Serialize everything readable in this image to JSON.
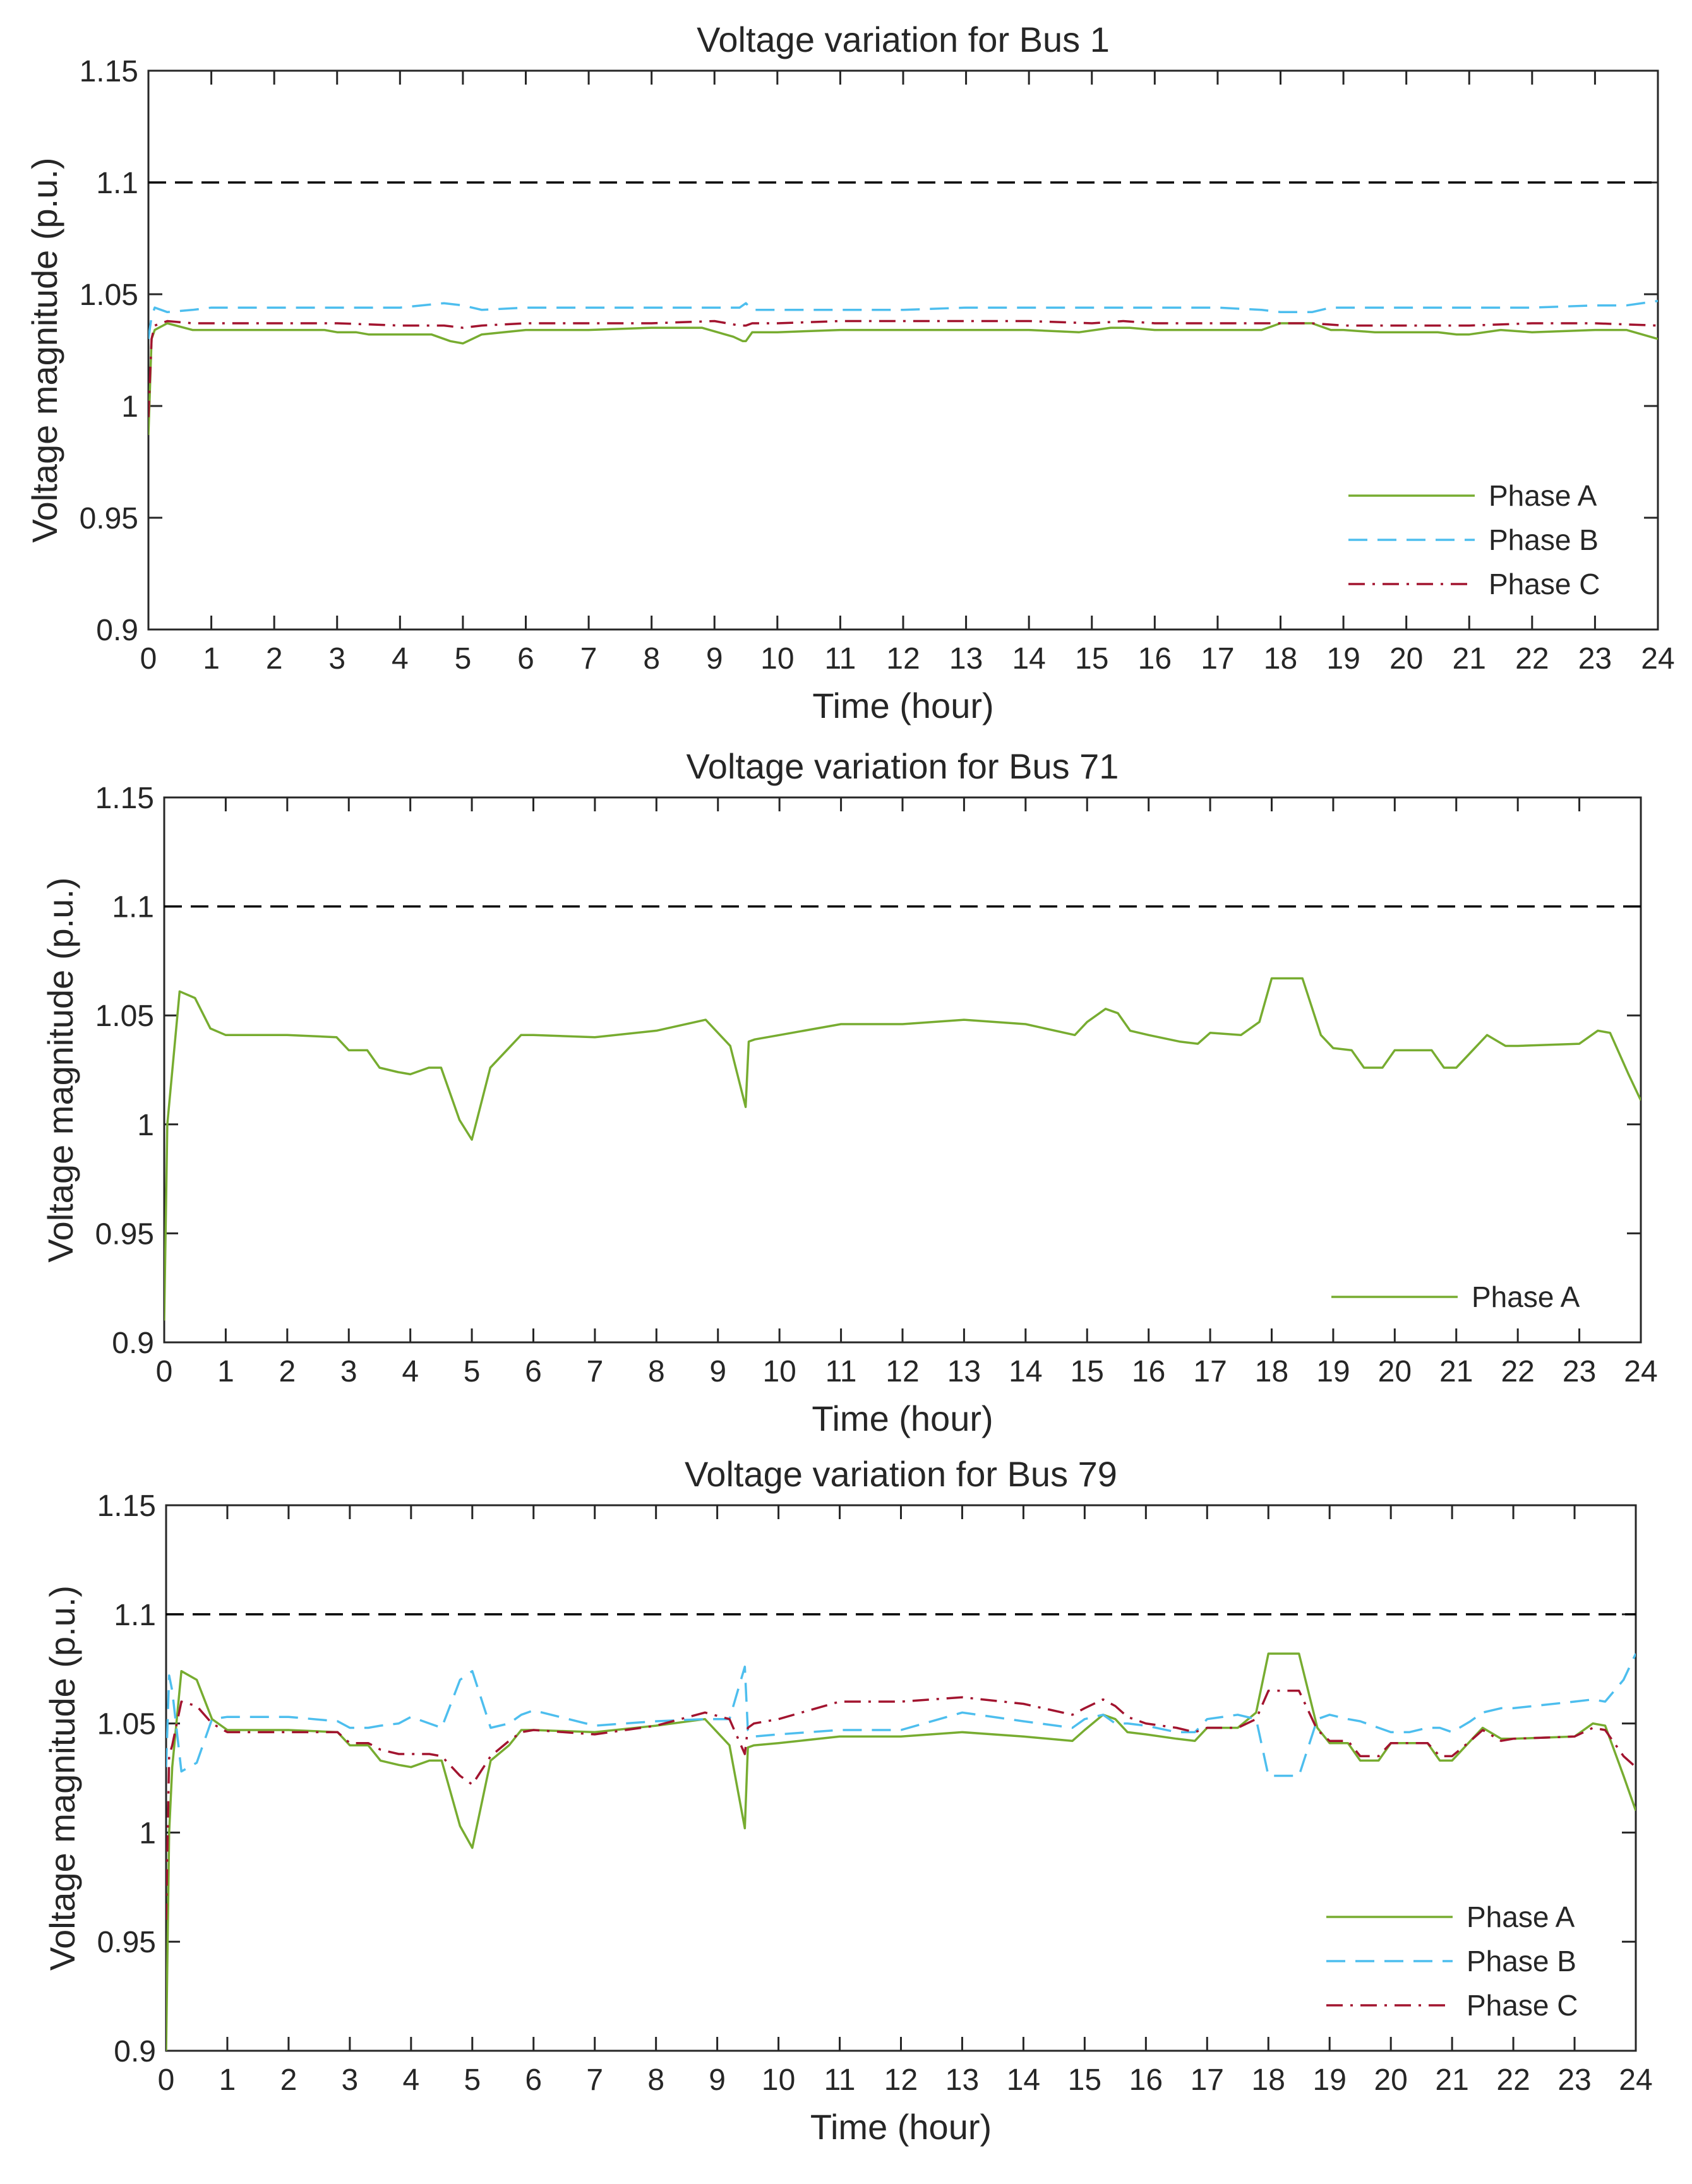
{
  "figure": {
    "colors": {
      "axis": "#262626",
      "limit": "#000000"
    },
    "charts_note": "three stacked line charts"
  },
  "chart_data": [
    {
      "type": "line",
      "title": "Voltage variation for Bus 1",
      "xlabel": "Time (hour)",
      "ylabel": "Voltage magnitude (p.u.)",
      "xlim": [
        0,
        24
      ],
      "ylim": [
        0.9,
        1.15
      ],
      "xticks": [
        "0",
        "1",
        "2",
        "3",
        "4",
        "5",
        "6",
        "7",
        "8",
        "9",
        "10",
        "11",
        "12",
        "13",
        "14",
        "15",
        "16",
        "17",
        "18",
        "19",
        "20",
        "21",
        "22",
        "23",
        "24"
      ],
      "yticks": [
        "0.9",
        "0.95",
        "1",
        "1.05",
        "1.1",
        "1.15"
      ],
      "legend_position": "bottom-right",
      "limit_line": {
        "y": 1.1,
        "style": "dashed"
      },
      "series": [
        {
          "name": "Phase A",
          "color": "#77AC30",
          "style": "solid",
          "x": [
            0,
            0.05,
            0.1,
            0.3,
            0.7,
            1,
            2,
            2.8,
            3,
            3.3,
            3.5,
            4,
            4.5,
            4.8,
            5,
            5.3,
            6,
            7,
            8,
            8.8,
            9.3,
            9.45,
            9.5,
            9.6,
            10,
            11,
            12,
            13,
            14,
            14.8,
            15.3,
            15.6,
            16,
            17,
            17.7,
            18,
            18.5,
            18.8,
            19,
            19.5,
            20,
            20.5,
            20.8,
            21,
            21.5,
            22,
            23,
            23.5,
            24
          ],
          "y": [
            0.987,
            1.03,
            1.034,
            1.037,
            1.034,
            1.034,
            1.034,
            1.034,
            1.033,
            1.033,
            1.032,
            1.032,
            1.032,
            1.029,
            1.028,
            1.032,
            1.034,
            1.034,
            1.035,
            1.035,
            1.031,
            1.029,
            1.029,
            1.033,
            1.033,
            1.034,
            1.034,
            1.034,
            1.034,
            1.033,
            1.035,
            1.035,
            1.034,
            1.034,
            1.034,
            1.037,
            1.037,
            1.034,
            1.034,
            1.033,
            1.033,
            1.033,
            1.032,
            1.032,
            1.034,
            1.033,
            1.034,
            1.034,
            1.03
          ]
        },
        {
          "name": "Phase B",
          "color": "#4DBEEE",
          "style": "dashed",
          "x": [
            0,
            0.05,
            0.1,
            0.3,
            0.7,
            1,
            2,
            3,
            4,
            4.7,
            5,
            5.3,
            6,
            7,
            8,
            9,
            9.4,
            9.5,
            9.6,
            10,
            12,
            13,
            14,
            15,
            16,
            17,
            17.7,
            18,
            18.5,
            18.8,
            19,
            20,
            21,
            22,
            23,
            23.5,
            24
          ],
          "y": [
            1.03,
            1.04,
            1.044,
            1.042,
            1.043,
            1.044,
            1.044,
            1.044,
            1.044,
            1.046,
            1.045,
            1.043,
            1.044,
            1.044,
            1.044,
            1.044,
            1.044,
            1.046,
            1.043,
            1.043,
            1.043,
            1.044,
            1.044,
            1.044,
            1.044,
            1.044,
            1.043,
            1.042,
            1.042,
            1.044,
            1.044,
            1.044,
            1.044,
            1.044,
            1.045,
            1.045,
            1.047
          ]
        },
        {
          "name": "Phase C",
          "color": "#A2142F",
          "style": "dashdot",
          "x": [
            0,
            0.05,
            0.1,
            0.3,
            0.7,
            1,
            2,
            3,
            4,
            4.7,
            5,
            5.3,
            6,
            7,
            8,
            9,
            9.4,
            9.5,
            9.6,
            10,
            11,
            12,
            13,
            14,
            15,
            15.5,
            16,
            17,
            18,
            18.5,
            19,
            19.5,
            20,
            21,
            22,
            23,
            24
          ],
          "y": [
            0.995,
            1.03,
            1.036,
            1.038,
            1.037,
            1.037,
            1.037,
            1.037,
            1.036,
            1.036,
            1.035,
            1.036,
            1.037,
            1.037,
            1.037,
            1.038,
            1.036,
            1.036,
            1.037,
            1.037,
            1.038,
            1.038,
            1.038,
            1.038,
            1.037,
            1.038,
            1.037,
            1.037,
            1.037,
            1.037,
            1.036,
            1.036,
            1.036,
            1.036,
            1.037,
            1.037,
            1.036
          ]
        }
      ]
    },
    {
      "type": "line",
      "title": "Voltage variation for Bus 71",
      "xlabel": "Time (hour)",
      "ylabel": "Voltage magnitude (p.u.)",
      "xlim": [
        0,
        24
      ],
      "ylim": [
        0.9,
        1.15
      ],
      "xticks": [
        "0",
        "1",
        "2",
        "3",
        "4",
        "5",
        "6",
        "7",
        "8",
        "9",
        "10",
        "11",
        "12",
        "13",
        "14",
        "15",
        "16",
        "17",
        "18",
        "19",
        "20",
        "21",
        "22",
        "23",
        "24"
      ],
      "yticks": [
        "0.9",
        "0.95",
        "1",
        "1.05",
        "1.1",
        "1.15"
      ],
      "legend_position": "bottom-right",
      "limit_line": {
        "y": 1.1,
        "style": "dashed"
      },
      "series": [
        {
          "name": "Phase A",
          "color": "#77AC30",
          "style": "solid",
          "x": [
            0,
            0.05,
            0.1,
            0.25,
            0.5,
            0.75,
            1,
            2,
            2.8,
            3,
            3.3,
            3.5,
            3.8,
            4,
            4.3,
            4.5,
            4.8,
            5,
            5.3,
            5.6,
            5.8,
            6,
            7,
            8,
            8.8,
            9.2,
            9.45,
            9.5,
            9.6,
            10,
            11,
            12,
            13,
            14,
            14.8,
            15,
            15.3,
            15.5,
            15.7,
            16,
            16.5,
            16.8,
            17,
            17.5,
            17.8,
            18,
            18.3,
            18.5,
            18.8,
            19,
            19.3,
            19.5,
            19.8,
            20,
            20.3,
            20.6,
            20.8,
            21,
            21.3,
            21.5,
            21.8,
            22,
            23,
            23.3,
            23.5,
            23.8,
            24
          ],
          "y": [
            0.91,
            1.0,
            1.015,
            1.061,
            1.058,
            1.044,
            1.041,
            1.041,
            1.04,
            1.034,
            1.034,
            1.026,
            1.024,
            1.023,
            1.026,
            1.026,
            1.002,
            0.993,
            1.026,
            1.035,
            1.041,
            1.041,
            1.04,
            1.043,
            1.048,
            1.036,
            1.008,
            1.038,
            1.039,
            1.041,
            1.046,
            1.046,
            1.048,
            1.046,
            1.041,
            1.047,
            1.053,
            1.051,
            1.043,
            1.041,
            1.038,
            1.037,
            1.042,
            1.041,
            1.047,
            1.067,
            1.067,
            1.067,
            1.041,
            1.035,
            1.034,
            1.026,
            1.026,
            1.034,
            1.034,
            1.034,
            1.026,
            1.026,
            1.035,
            1.041,
            1.036,
            1.036,
            1.037,
            1.043,
            1.042,
            1.023,
            1.011
          ]
        }
      ]
    },
    {
      "type": "line",
      "title": "Voltage variation for Bus 79",
      "xlabel": "Time (hour)",
      "ylabel": "Voltage magnitude (p.u.)",
      "xlim": [
        0,
        24
      ],
      "ylim": [
        0.9,
        1.15
      ],
      "xticks": [
        "0",
        "1",
        "2",
        "3",
        "4",
        "5",
        "6",
        "7",
        "8",
        "9",
        "10",
        "11",
        "12",
        "13",
        "14",
        "15",
        "16",
        "17",
        "18",
        "19",
        "20",
        "21",
        "22",
        "23",
        "24"
      ],
      "yticks": [
        "0.9",
        "0.95",
        "1",
        "1.05",
        "1.1",
        "1.15"
      ],
      "legend_position": "bottom-right",
      "limit_line": {
        "y": 1.1,
        "style": "dashed"
      },
      "series": [
        {
          "name": "Phase A",
          "color": "#77AC30",
          "style": "solid",
          "x": [
            0,
            0.05,
            0.1,
            0.25,
            0.5,
            0.75,
            1,
            2,
            2.8,
            3,
            3.3,
            3.5,
            3.8,
            4,
            4.3,
            4.5,
            4.8,
            5,
            5.3,
            5.6,
            5.8,
            6,
            7,
            8,
            8.8,
            9.2,
            9.45,
            9.5,
            9.6,
            10,
            11,
            12,
            13,
            14,
            14.8,
            15,
            15.3,
            15.5,
            15.7,
            16,
            16.5,
            16.8,
            17,
            17.5,
            17.8,
            18,
            18.3,
            18.5,
            18.8,
            19,
            19.3,
            19.5,
            19.8,
            20,
            20.3,
            20.6,
            20.8,
            21,
            21.3,
            21.5,
            21.8,
            22,
            23,
            23.3,
            23.5,
            23.8,
            24
          ],
          "y": [
            0.9,
            1.0,
            1.03,
            1.074,
            1.07,
            1.052,
            1.047,
            1.047,
            1.046,
            1.04,
            1.04,
            1.033,
            1.031,
            1.03,
            1.033,
            1.033,
            1.003,
            0.993,
            1.033,
            1.04,
            1.047,
            1.047,
            1.046,
            1.049,
            1.052,
            1.04,
            1.002,
            1.039,
            1.04,
            1.041,
            1.044,
            1.044,
            1.046,
            1.044,
            1.042,
            1.047,
            1.054,
            1.052,
            1.046,
            1.045,
            1.043,
            1.042,
            1.048,
            1.048,
            1.055,
            1.082,
            1.082,
            1.082,
            1.048,
            1.041,
            1.041,
            1.033,
            1.033,
            1.041,
            1.041,
            1.041,
            1.033,
            1.033,
            1.042,
            1.048,
            1.043,
            1.043,
            1.044,
            1.05,
            1.049,
            1.026,
            1.01
          ]
        },
        {
          "name": "Phase B",
          "color": "#4DBEEE",
          "style": "dashed",
          "x": [
            0,
            0.05,
            0.1,
            0.25,
            0.5,
            0.75,
            1,
            2,
            2.8,
            3,
            3.3,
            3.5,
            3.8,
            4,
            4.3,
            4.5,
            4.8,
            5,
            5.3,
            5.6,
            5.8,
            6,
            7,
            8,
            8.8,
            9.2,
            9.45,
            9.5,
            9.6,
            10,
            11,
            12,
            13,
            14,
            14.8,
            15,
            15.3,
            15.5,
            15.7,
            16,
            16.5,
            16.8,
            17,
            17.5,
            17.8,
            18,
            18.3,
            18.5,
            18.8,
            19,
            19.3,
            19.5,
            19.8,
            20,
            20.3,
            20.6,
            20.8,
            21,
            21.3,
            21.5,
            21.8,
            22,
            23,
            23.3,
            23.5,
            23.8,
            24
          ],
          "y": [
            1.03,
            1.072,
            1.065,
            1.028,
            1.032,
            1.052,
            1.053,
            1.053,
            1.051,
            1.048,
            1.048,
            1.049,
            1.05,
            1.053,
            1.05,
            1.048,
            1.07,
            1.074,
            1.048,
            1.05,
            1.054,
            1.056,
            1.049,
            1.051,
            1.052,
            1.052,
            1.076,
            1.047,
            1.044,
            1.045,
            1.047,
            1.047,
            1.055,
            1.051,
            1.048,
            1.052,
            1.054,
            1.05,
            1.05,
            1.049,
            1.046,
            1.046,
            1.052,
            1.054,
            1.052,
            1.026,
            1.026,
            1.026,
            1.052,
            1.054,
            1.052,
            1.051,
            1.048,
            1.046,
            1.046,
            1.048,
            1.048,
            1.046,
            1.051,
            1.055,
            1.057,
            1.057,
            1.06,
            1.061,
            1.06,
            1.07,
            1.082
          ]
        },
        {
          "name": "Phase C",
          "color": "#A2142F",
          "style": "dashdot",
          "x": [
            0,
            0.05,
            0.1,
            0.25,
            0.5,
            0.75,
            1,
            2,
            2.8,
            3,
            3.3,
            3.5,
            3.8,
            4,
            4.3,
            4.5,
            4.8,
            5,
            5.3,
            5.6,
            5.8,
            6,
            7,
            8,
            8.8,
            9.2,
            9.45,
            9.5,
            9.6,
            10,
            11,
            12,
            13,
            14,
            14.8,
            15,
            15.3,
            15.5,
            15.7,
            16,
            16.5,
            16.8,
            17,
            17.5,
            17.8,
            18,
            18.3,
            18.5,
            18.8,
            19,
            19.3,
            19.5,
            19.8,
            20,
            20.3,
            20.6,
            20.8,
            21,
            21.3,
            21.5,
            21.8,
            22,
            23,
            23.3,
            23.5,
            23.8,
            24
          ],
          "y": [
            0.96,
            1.035,
            1.04,
            1.06,
            1.058,
            1.05,
            1.046,
            1.046,
            1.046,
            1.041,
            1.041,
            1.038,
            1.036,
            1.036,
            1.036,
            1.035,
            1.026,
            1.022,
            1.035,
            1.042,
            1.046,
            1.047,
            1.045,
            1.049,
            1.055,
            1.052,
            1.036,
            1.048,
            1.05,
            1.052,
            1.06,
            1.06,
            1.062,
            1.059,
            1.054,
            1.057,
            1.061,
            1.058,
            1.053,
            1.05,
            1.048,
            1.046,
            1.048,
            1.048,
            1.052,
            1.065,
            1.065,
            1.065,
            1.047,
            1.042,
            1.042,
            1.035,
            1.035,
            1.041,
            1.041,
            1.041,
            1.035,
            1.035,
            1.042,
            1.047,
            1.042,
            1.043,
            1.044,
            1.048,
            1.047,
            1.035,
            1.03
          ]
        }
      ]
    }
  ]
}
